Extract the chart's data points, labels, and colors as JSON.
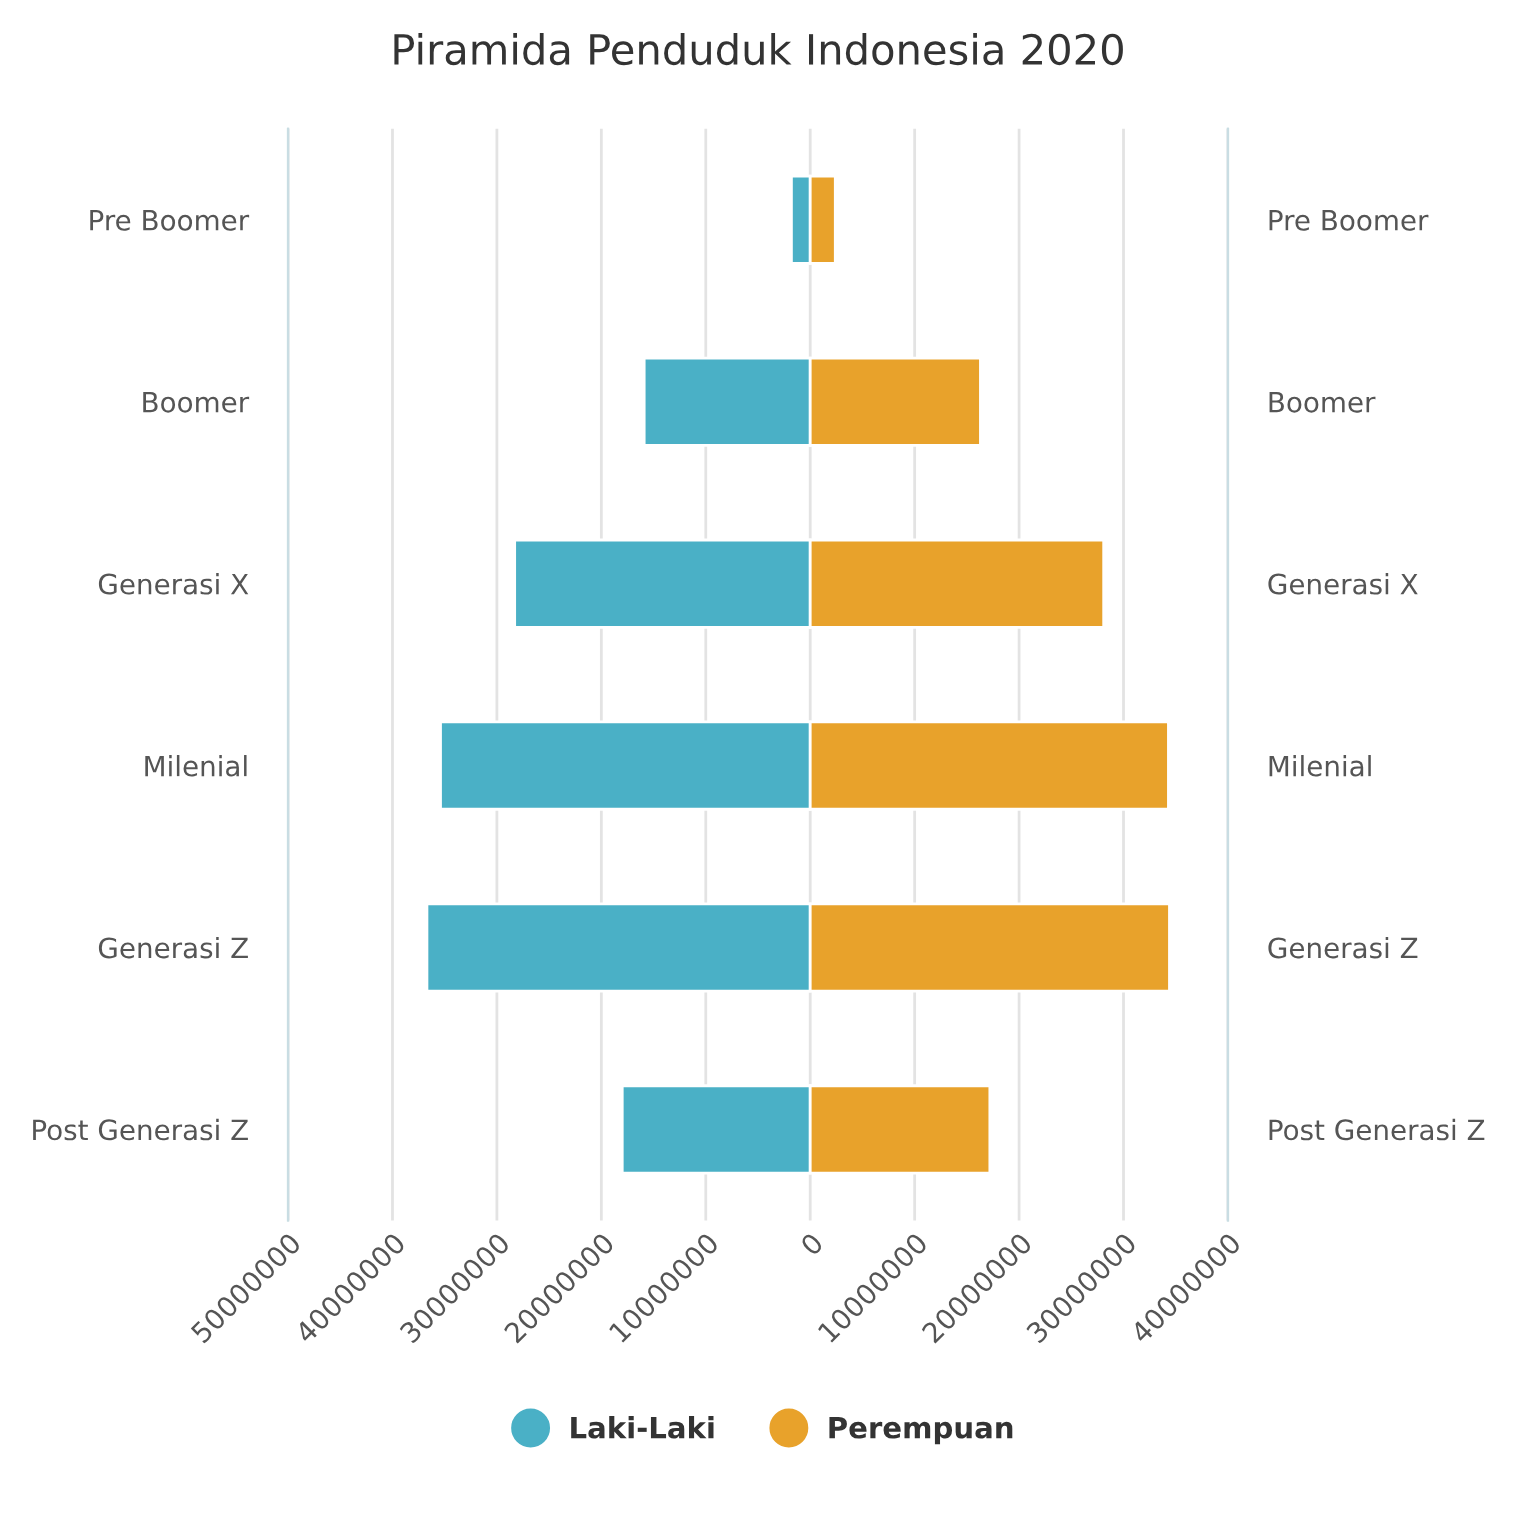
{
  "chart_data": {
    "type": "bar",
    "orientation": "horizontal",
    "title": "Piramida Penduduk Indonesia 2020",
    "categories": [
      "Pre Boomer",
      "Boomer",
      "Generasi X",
      "Milenial",
      "Generasi Z",
      "Post Generasi Z"
    ],
    "y2_categories": [
      "Pre Boomer",
      "Boomer",
      "Generasi X",
      "Milenial",
      "Generasi Z",
      "Post Generasi Z"
    ],
    "series": [
      {
        "name": "Laki-Laki",
        "color": "#4ab0c6",
        "values": [
          -1800000,
          -15900000,
          -28300000,
          -35400000,
          -36700000,
          -18000000
        ]
      },
      {
        "name": "Perempuan",
        "color": "#e8a22b",
        "values": [
          2400000,
          16300000,
          28100000,
          34300000,
          34400000,
          17200000
        ]
      }
    ],
    "xlim": [
      -50000000,
      40000000
    ],
    "xticks": [
      {
        "value": -50000000,
        "label": "50000000"
      },
      {
        "value": -40000000,
        "label": "40000000"
      },
      {
        "value": -30000000,
        "label": "30000000"
      },
      {
        "value": -20000000,
        "label": "20000000"
      },
      {
        "value": -10000000,
        "label": "10000000"
      },
      0,
      10000000,
      20000000,
      30000000,
      40000000
    ],
    "stacked": true,
    "grid": "x",
    "legend": "bottom",
    "marker": "circle"
  }
}
